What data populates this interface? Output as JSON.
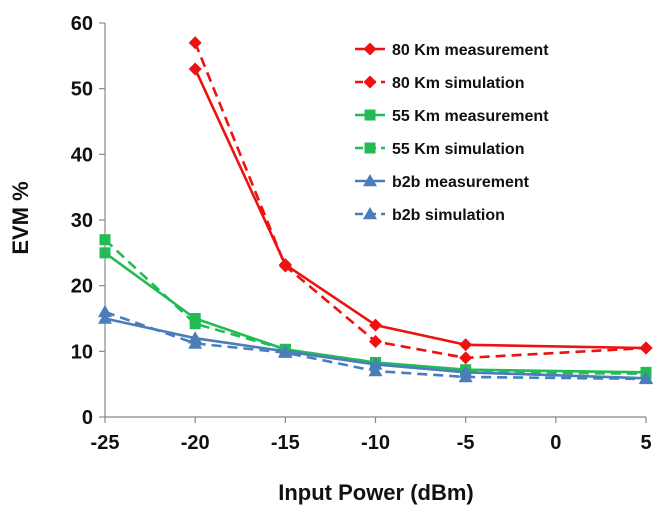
{
  "chart_data": {
    "type": "line",
    "title": "",
    "xlabel": "Input Power (dBm)",
    "ylabel": "EVM %",
    "xlim": [
      -25,
      5
    ],
    "ylim": [
      0,
      60
    ],
    "xticks": [
      -25,
      -20,
      -15,
      -10,
      -5,
      0,
      5
    ],
    "yticks": [
      0,
      10,
      20,
      30,
      40,
      50,
      60
    ],
    "x_tick_labels": [
      "-25",
      "-20",
      "-15",
      "-10",
      "-5",
      "0",
      "5"
    ],
    "y_tick_labels": [
      "0",
      "10",
      "20",
      "30",
      "40",
      "50",
      "60"
    ],
    "grid": false,
    "legend_position": "top-right",
    "series": [
      {
        "name": "80 Km measurement",
        "color": "#ee1111",
        "line": "solid",
        "marker": "diamond",
        "x": [
          -20,
          -15,
          -10,
          -5,
          5
        ],
        "y": [
          53,
          23.2,
          14,
          11,
          10.5
        ]
      },
      {
        "name": "80 Km simulation",
        "color": "#ee1111",
        "line": "dashed",
        "marker": "diamond",
        "x": [
          -20,
          -15,
          -10,
          -5,
          5
        ],
        "y": [
          57,
          23,
          11.5,
          9,
          10.5
        ]
      },
      {
        "name": "55 Km measurement",
        "color": "#22bb55",
        "line": "solid",
        "marker": "square",
        "x": [
          -25,
          -20,
          -15,
          -10,
          -5,
          5
        ],
        "y": [
          25,
          15,
          10.3,
          8.3,
          7.2,
          6.8
        ]
      },
      {
        "name": "55 Km simulation",
        "color": "#22bb55",
        "line": "dashed",
        "marker": "square",
        "x": [
          -25,
          -20,
          -15,
          -10,
          -5,
          5
        ],
        "y": [
          27,
          14.2,
          10.3,
          8.3,
          6.8,
          6.6
        ]
      },
      {
        "name": "b2b measurement",
        "color": "#4a7ebb",
        "line": "solid",
        "marker": "triangle",
        "x": [
          -25,
          -20,
          -15,
          -10,
          -5,
          5
        ],
        "y": [
          15,
          12,
          10,
          8,
          6.8,
          5.9
        ]
      },
      {
        "name": "b2b simulation",
        "color": "#4a7ebb",
        "line": "dashed",
        "marker": "triangle",
        "x": [
          -25,
          -20,
          -15,
          -10,
          -5,
          5
        ],
        "y": [
          16,
          11.2,
          9.8,
          7,
          6.1,
          5.8
        ]
      }
    ]
  }
}
